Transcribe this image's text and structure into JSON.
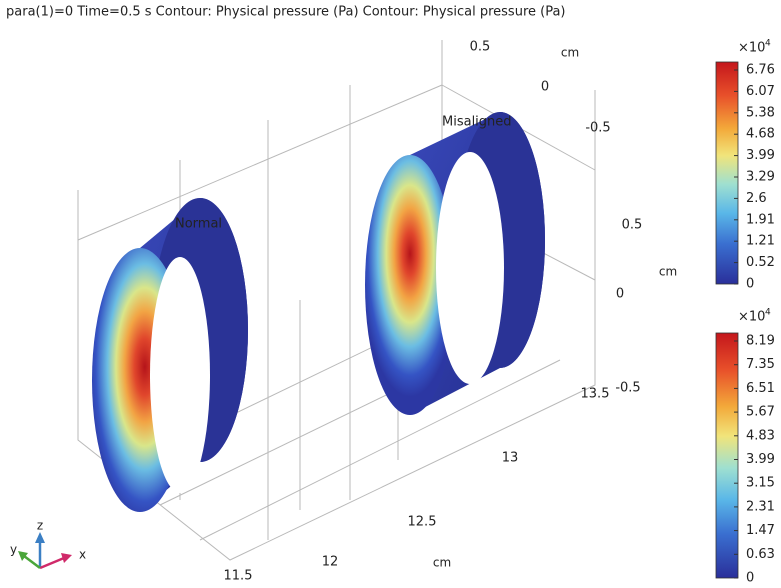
{
  "title": "para(1)=0 Time=0.5 s  Contour: Physical pressure (Pa)  Contour: Physical pressure (Pa)",
  "labels": {
    "normal": "Normal",
    "misaligned": "Misaligned"
  },
  "axes": {
    "top": {
      "ticks": [
        "0.5",
        "0",
        "-0.5"
      ],
      "unit": "cm"
    },
    "right": {
      "ticks": [
        "0.5",
        "0",
        "-0.5"
      ],
      "unit": "cm"
    },
    "bottom": {
      "ticks": [
        "13.5",
        "13",
        "12.5",
        "12",
        "11.5"
      ],
      "unit": "cm"
    }
  },
  "colorbars": [
    {
      "multiplier": "×10",
      "exponent": "4",
      "ticks": [
        "6.76",
        "6.07",
        "5.38",
        "4.68",
        "3.99",
        "3.29",
        "2.6",
        "1.91",
        "1.21",
        "0.52",
        "0"
      ]
    },
    {
      "multiplier": "×10",
      "exponent": "4",
      "ticks": [
        "8.19",
        "7.35",
        "6.51",
        "5.67",
        "4.83",
        "3.99",
        "3.15",
        "2.31",
        "1.47",
        "0.63",
        "0"
      ]
    }
  ],
  "triad": {
    "x": "x",
    "y": "y",
    "z": "z"
  }
}
